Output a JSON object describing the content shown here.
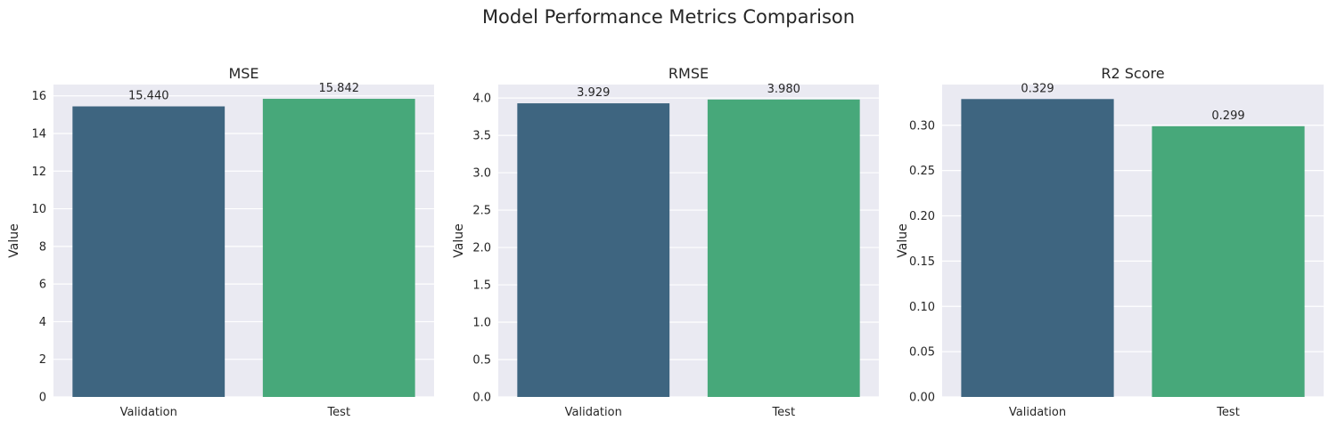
{
  "figure": {
    "title": "Model Performance Metrics Comparison"
  },
  "colors": {
    "plot_background": "#EAEAF2",
    "grid": "#FFFFFF",
    "validation_bar": "#3E6580",
    "test_bar": "#47A87A",
    "text": "#262626"
  },
  "chart_data": [
    {
      "type": "bar",
      "title": "MSE",
      "ylabel": "Value",
      "xlabel": "",
      "categories": [
        "Validation",
        "Test"
      ],
      "values": [
        15.44,
        15.842
      ],
      "value_labels": [
        "15.440",
        "15.842"
      ],
      "ylim": [
        0,
        16.6
      ],
      "yticks": [
        0,
        2,
        4,
        6,
        8,
        10,
        12,
        14,
        16
      ],
      "ytick_labels": [
        "0",
        "2",
        "4",
        "6",
        "8",
        "10",
        "12",
        "14",
        "16"
      ],
      "grid": true
    },
    {
      "type": "bar",
      "title": "RMSE",
      "ylabel": "Value",
      "xlabel": "",
      "categories": [
        "Validation",
        "Test"
      ],
      "values": [
        3.929,
        3.98
      ],
      "value_labels": [
        "3.929",
        "3.980"
      ],
      "ylim": [
        0,
        4.18
      ],
      "yticks": [
        0,
        0.5,
        1,
        1.5,
        2,
        2.5,
        3,
        3.5,
        4
      ],
      "ytick_labels": [
        "0.0",
        "0.5",
        "1.0",
        "1.5",
        "2.0",
        "2.5",
        "3.0",
        "3.5",
        "4.0"
      ],
      "grid": true
    },
    {
      "type": "bar",
      "title": "R2 Score",
      "ylabel": "Value",
      "xlabel": "",
      "categories": [
        "Validation",
        "Test"
      ],
      "values": [
        0.329,
        0.299
      ],
      "value_labels": [
        "0.329",
        "0.299"
      ],
      "ylim": [
        0,
        0.345
      ],
      "yticks": [
        0,
        0.05,
        0.1,
        0.15,
        0.2,
        0.25,
        0.3
      ],
      "ytick_labels": [
        "0.00",
        "0.05",
        "0.10",
        "0.15",
        "0.20",
        "0.25",
        "0.30"
      ],
      "grid": true
    }
  ]
}
